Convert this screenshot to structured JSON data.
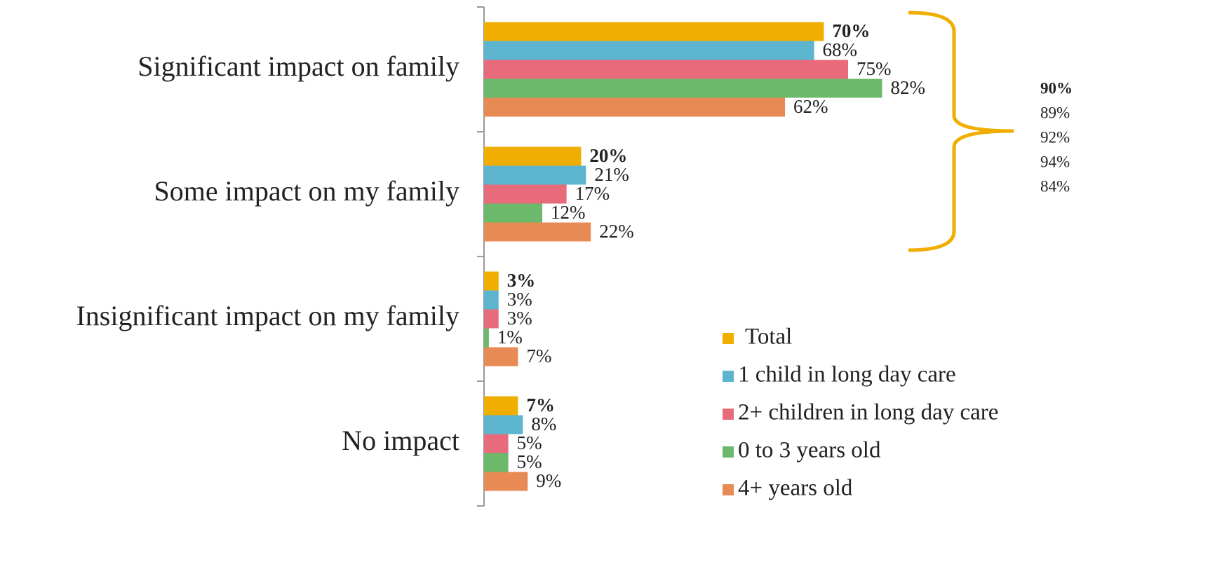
{
  "chart_data": {
    "type": "bar",
    "orientation": "horizontal",
    "categories": [
      "Significant impact on family",
      "Some impact on my family",
      "Insignificant impact on my family",
      "No impact"
    ],
    "xlim": [
      0,
      100
    ],
    "series": [
      {
        "name": "Total",
        "color": "#f0ae00",
        "values": [
          70,
          20,
          3,
          7
        ],
        "value_labels": [
          "70%",
          "20%",
          "3%",
          "7%"
        ]
      },
      {
        "name": "1 child in long day care",
        "color": "#5cb4cf",
        "values": [
          68,
          21,
          3,
          8
        ],
        "value_labels": [
          "68%",
          "21%",
          "3%",
          "8%"
        ]
      },
      {
        "name": "2+ children in long day care",
        "color": "#e86b7c",
        "values": [
          75,
          17,
          3,
          5
        ],
        "value_labels": [
          "75%",
          "17%",
          "3%",
          "5%"
        ]
      },
      {
        "name": "0 to 3 years old",
        "color": "#6cb96c",
        "values": [
          82,
          12,
          1,
          5
        ],
        "value_labels": [
          "82%",
          "12%",
          "1%",
          "5%"
        ]
      },
      {
        "name": "4+ years old",
        "color": "#e88a54",
        "values": [
          62,
          22,
          7,
          9
        ],
        "value_labels": [
          "62%",
          "22%",
          "7%",
          "9%"
        ]
      }
    ],
    "bracket_color": "#f0ae00",
    "bracket_labels": [
      "90%",
      "89%",
      "92%",
      "94%",
      "84%"
    ]
  }
}
